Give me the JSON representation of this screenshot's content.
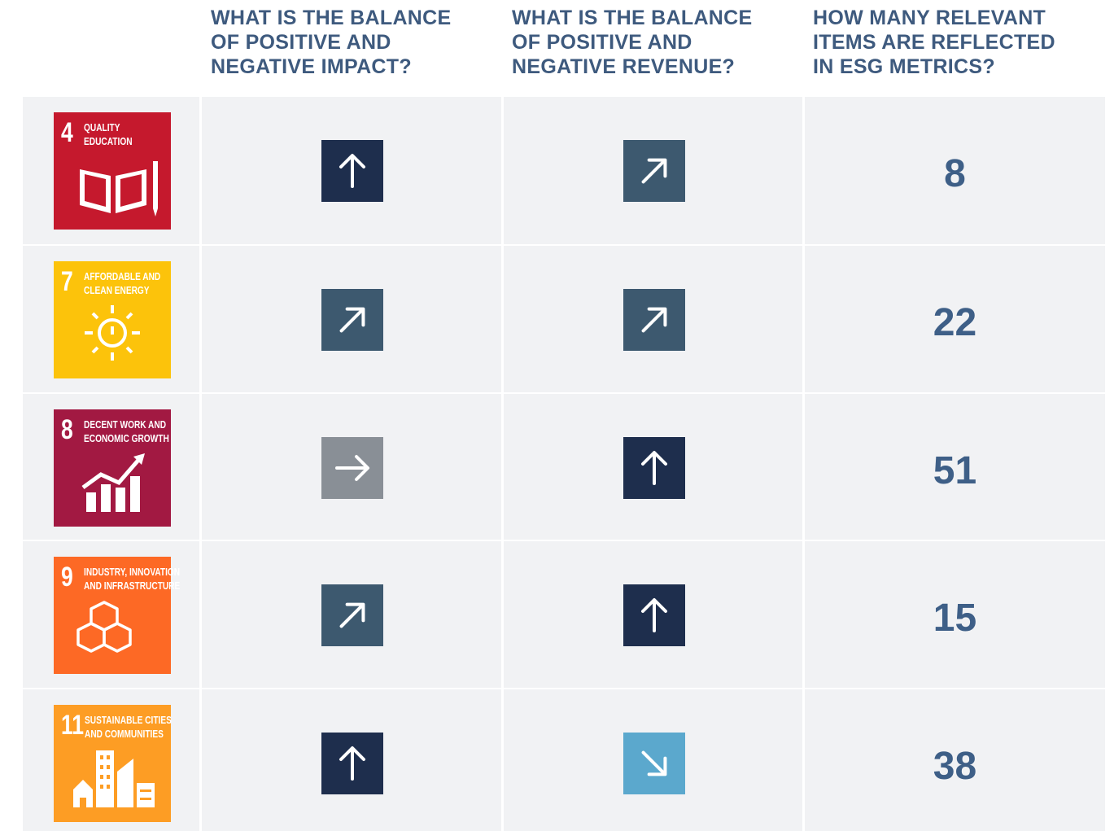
{
  "header": {
    "columns": [
      [
        "WHAT IS THE BALANCE",
        "OF POSITIVE AND",
        "NEGATIVE IMPACT?"
      ],
      [
        "WHAT IS THE BALANCE",
        "OF POSITIVE AND",
        "NEGATIVE REVENUE?"
      ],
      [
        "HOW MANY RELEVANT",
        "ITEMS ARE REFLECTED",
        "IN ESG METRICS?"
      ]
    ]
  },
  "table": {
    "rows": [
      {
        "goal_number": "4",
        "goal_name": [
          "QUALITY",
          "EDUCATION"
        ],
        "goal_color": "#c5192d",
        "impact": "up",
        "revenue": "up-right",
        "count": 8
      },
      {
        "goal_number": "7",
        "goal_name": [
          "AFFORDABLE AND",
          "CLEAN ENERGY"
        ],
        "goal_color": "#fcc30b",
        "impact": "up-right",
        "revenue": "up-right",
        "count": 22
      },
      {
        "goal_number": "8",
        "goal_name": [
          "DECENT WORK AND",
          "ECONOMIC GROWTH"
        ],
        "goal_color": "#a21942",
        "impact": "right",
        "revenue": "up",
        "count": 51
      },
      {
        "goal_number": "9",
        "goal_name": [
          "INDUSTRY, INNOVATION",
          "AND INFRASTRUCTURE"
        ],
        "goal_color": "#fd6925",
        "impact": "up-right",
        "revenue": "up",
        "count": 15
      },
      {
        "goal_number": "11",
        "goal_name": [
          "SUSTAINABLE CITIES",
          "AND COMMUNITIES"
        ],
        "goal_color": "#fd9d24",
        "impact": "up",
        "revenue": "down-right",
        "count": 38
      }
    ]
  }
}
